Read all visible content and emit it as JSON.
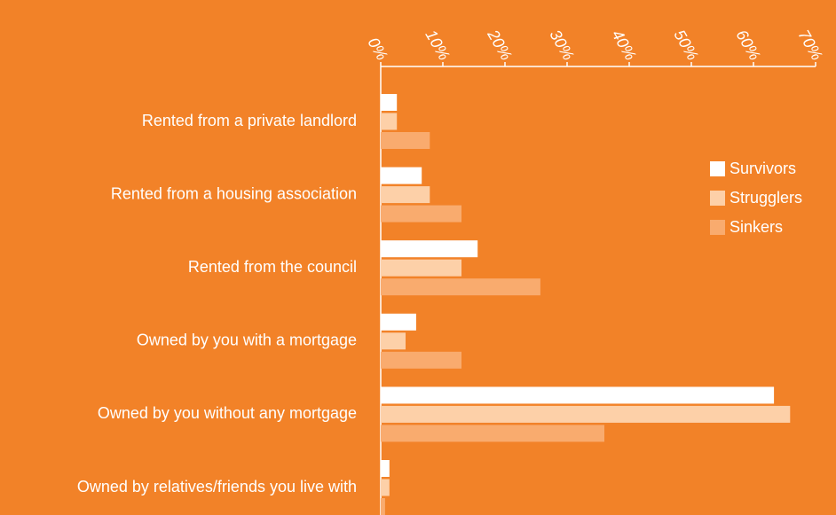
{
  "chart_data": {
    "type": "barh",
    "categories": [
      "Rented from a private landlord",
      "Rented from a housing association",
      "Rented from the council",
      "Owned by you with a mortgage",
      "Owned by you without any mortgage",
      "Owned by relatives/friends you live with"
    ],
    "series": [
      {
        "name": "Survivors",
        "color": "#ffffff",
        "values": [
          2.6,
          6.6,
          15.6,
          5.7,
          63.3,
          1.4
        ]
      },
      {
        "name": "Strugglers",
        "color": "#fdd0a8",
        "values": [
          2.6,
          7.9,
          13,
          4,
          65.9,
          1.4
        ]
      },
      {
        "name": "Sinkers",
        "color": "#f9ab6e",
        "values": [
          7.9,
          13,
          25.7,
          13,
          36,
          0.7
        ]
      }
    ],
    "xlim": [
      0,
      70
    ],
    "xticks": [
      {
        "value": 0,
        "label": "0%"
      },
      {
        "value": 10,
        "label": "10%"
      },
      {
        "value": 20,
        "label": "20%"
      },
      {
        "value": 30,
        "label": "30%"
      },
      {
        "value": 40,
        "label": "40%"
      },
      {
        "value": 50,
        "label": "50%"
      },
      {
        "value": 60,
        "label": "60%"
      },
      {
        "value": 70,
        "label": "70%"
      }
    ],
    "legend": "upper right"
  }
}
